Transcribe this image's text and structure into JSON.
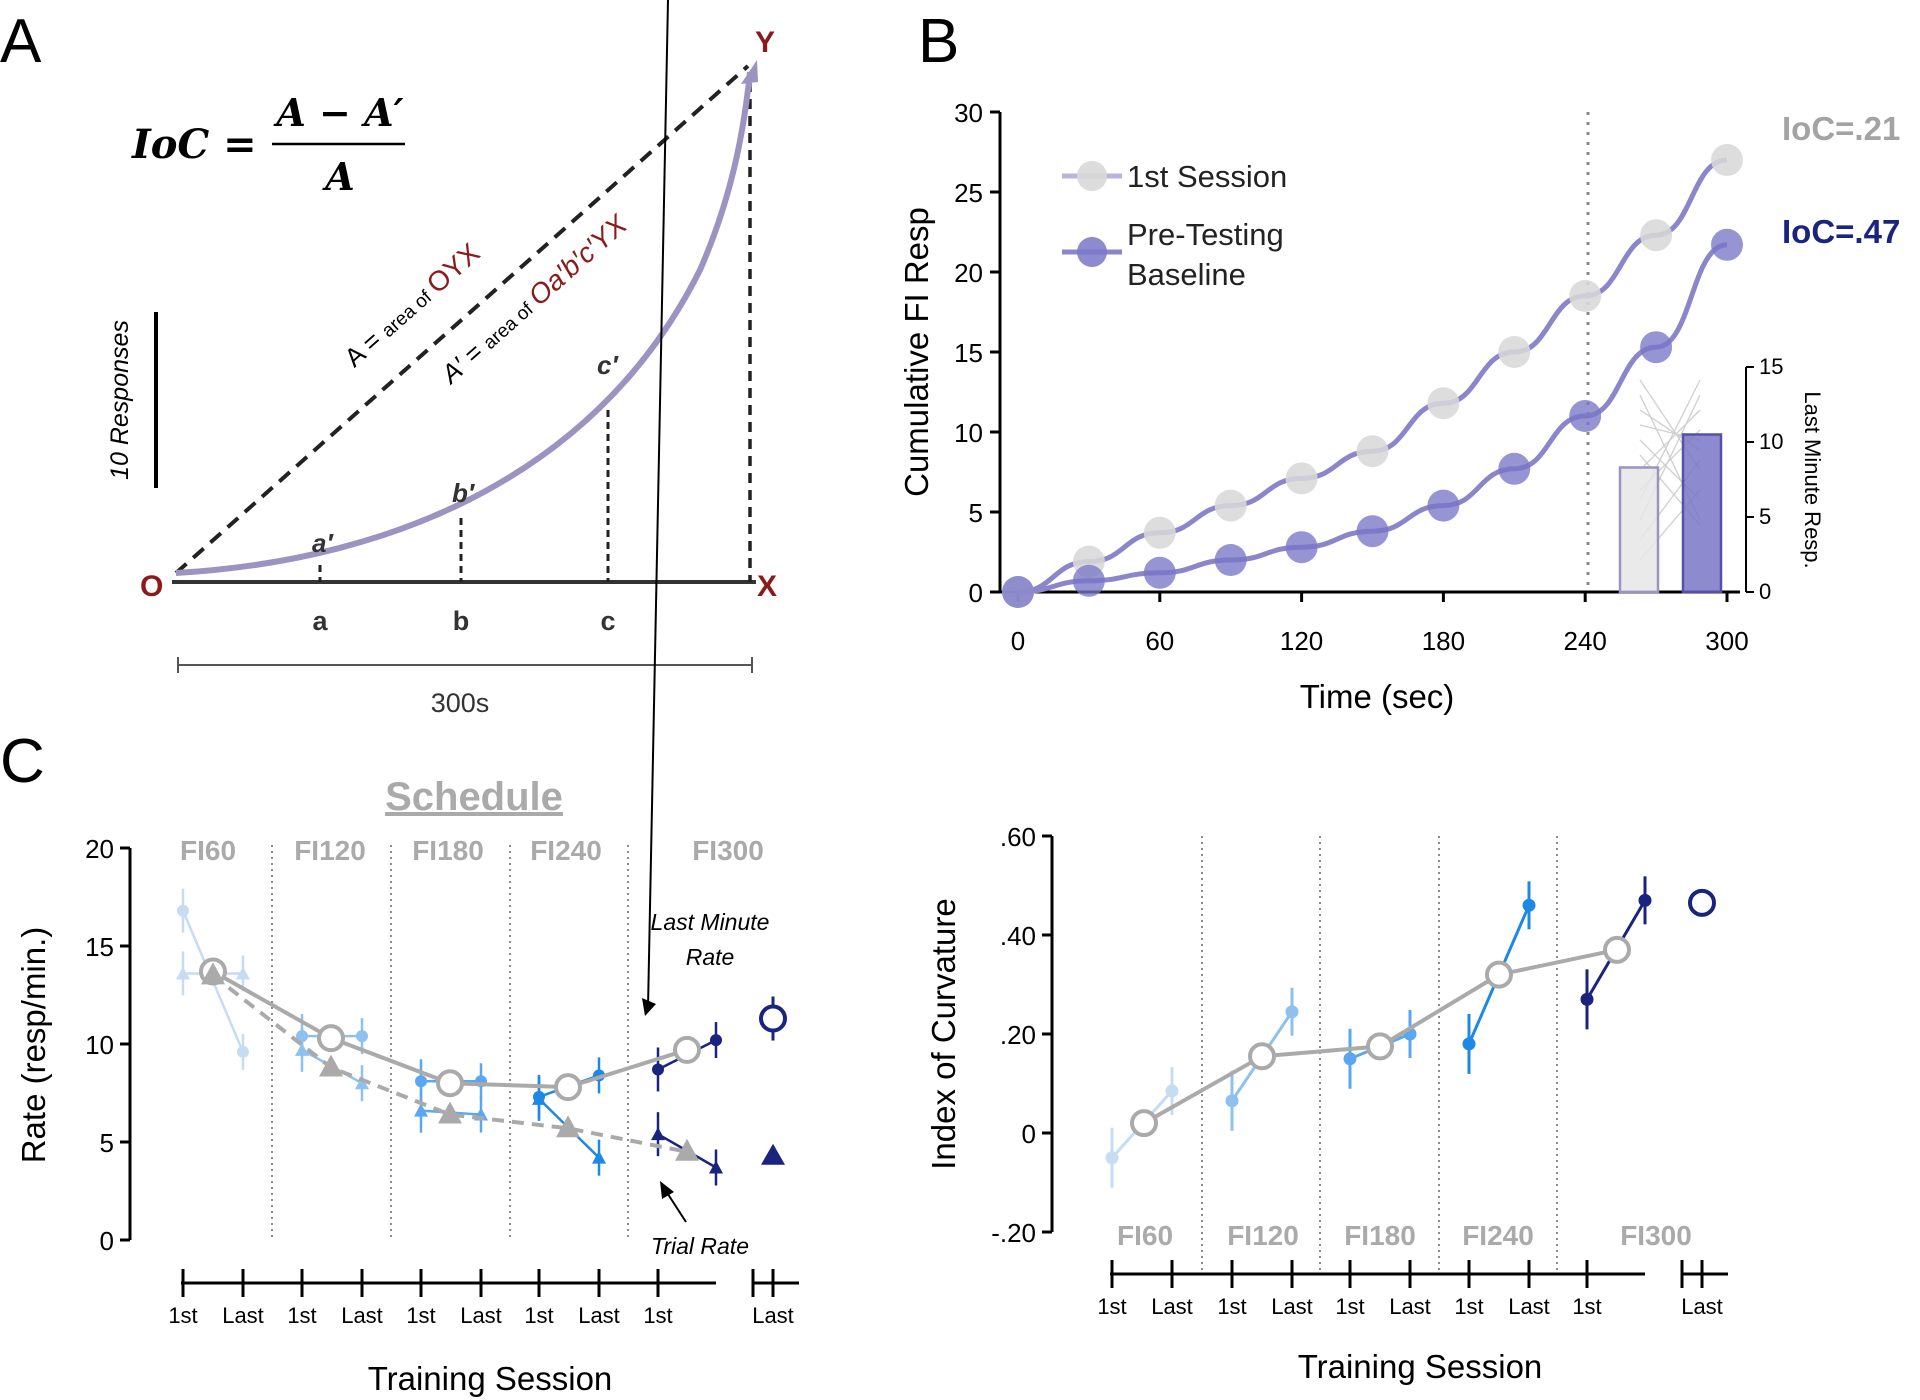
{
  "panels": {
    "a": "A",
    "b": "B",
    "c": "C"
  },
  "colors": {
    "curve": "#9d93c0",
    "fit_line": "#8b86c9",
    "first_session_marker": "#d8d8d8",
    "baseline_marker": "#7a76c8",
    "dark_red": "#8b1a1a",
    "ioc_grey": "#a3a3a3",
    "ioc_navy": "#1a237e",
    "fi60": "#c5dcf3",
    "fi120": "#8ec0f0",
    "fi180": "#5aa7f0",
    "fi240": "#1e88e5",
    "fi300": "#1a237e",
    "mean_grey": "#aaaaaa"
  },
  "panel_a": {
    "formula_lhs": "IoC =",
    "formula_num": "A − A′",
    "formula_den": "A",
    "def_a_prefix": "A = ",
    "def_a_area": "area of",
    "def_a_name": "OYX",
    "def_a2_prefix": "A′ = ",
    "def_a2_area": "area of",
    "def_a2_name": "Oa′b′c′YX",
    "scale_label": "10 Responses",
    "point_labels": {
      "o": "O",
      "x": "X",
      "y": "Y"
    },
    "curve_labels": [
      "a′",
      "b′",
      "c′"
    ],
    "axis_labels": [
      "a",
      "b",
      "c"
    ],
    "duration": "300s"
  },
  "chart_data": [
    {
      "id": "B",
      "type": "line",
      "title": "",
      "xlabel": "Time (sec)",
      "ylabel": "Cumulative FI Resp",
      "xlim": [
        0,
        300
      ],
      "ylim": [
        0,
        30
      ],
      "x_ticks": [
        "0",
        "60",
        "120",
        "180",
        "240",
        "300"
      ],
      "y_ticks": [
        "0",
        "5",
        "10",
        "15",
        "20",
        "25",
        "30"
      ],
      "x": [
        0,
        30,
        60,
        90,
        120,
        150,
        180,
        210,
        240,
        270,
        300
      ],
      "series": [
        {
          "name": "1st Session",
          "values": [
            0,
            1.9,
            3.7,
            5.4,
            7.1,
            8.8,
            11.8,
            15.0,
            18.5,
            22.3,
            27.0
          ]
        },
        {
          "name": "Pre-Testing Baseline",
          "values": [
            0,
            0.7,
            1.2,
            2.0,
            2.8,
            3.8,
            5.4,
            7.7,
            11.0,
            15.3,
            21.7
          ]
        }
      ],
      "legend": [
        "1st Session",
        "Pre-Testing",
        "Baseline"
      ],
      "ioc_labels": [
        "IoC=.21",
        "IoC=.47"
      ],
      "marker_line_x": 240,
      "inset": {
        "ylabel": "Last Minute Resp.",
        "ylim": [
          0,
          15
        ],
        "y_ticks": [
          "0",
          "5",
          "10",
          "15"
        ],
        "bars": [
          {
            "name": "1st Session",
            "value": 8.3
          },
          {
            "name": "Pre-Testing Baseline",
            "value": 10.5
          }
        ]
      }
    },
    {
      "id": "C-left",
      "type": "line",
      "title": "Schedule",
      "xlabel": "Training Session",
      "ylabel": "Rate (resp/min.)",
      "ylim": [
        0,
        20
      ],
      "y_ticks": [
        "0",
        "5",
        "10",
        "15",
        "20"
      ],
      "schedules": [
        "FI60",
        "FI120",
        "FI180",
        "FI240",
        "FI300"
      ],
      "session_labels": [
        "1st",
        "Last",
        "1st",
        "Last",
        "1st",
        "Last",
        "1st",
        "Last",
        "1st",
        "Last"
      ],
      "annotations": [
        "Last Minute",
        "Rate",
        "Trial Rate"
      ],
      "last_minute_rate": {
        "first": [
          16.8,
          10.4,
          8.1,
          7.3,
          8.7
        ],
        "last": [
          9.6,
          10.4,
          8.1,
          8.4,
          10.2
        ],
        "mean": [
          13.7,
          10.3,
          8.0,
          7.8,
          9.7
        ],
        "test": 11.3
      },
      "trial_rate": {
        "first": [
          13.6,
          9.7,
          6.6,
          7.2,
          5.4
        ],
        "last": [
          13.6,
          8.0,
          6.4,
          4.2,
          3.7
        ],
        "mean": [
          13.5,
          8.8,
          6.4,
          5.7,
          4.5
        ],
        "test": 4.3
      }
    },
    {
      "id": "C-right",
      "type": "line",
      "xlabel": "Training Session",
      "ylabel": "Index of Curvature",
      "ylim": [
        -0.2,
        0.6
      ],
      "y_ticks": [
        ".60",
        ".40",
        ".20",
        "0",
        "-.20"
      ],
      "schedules": [
        "FI60",
        "FI120",
        "FI180",
        "FI240",
        "FI300"
      ],
      "session_labels": [
        "1st",
        "Last",
        "1st",
        "Last",
        "1st",
        "Last",
        "1st",
        "Last",
        "1st",
        "Last"
      ],
      "first": [
        -0.05,
        0.065,
        0.15,
        0.18,
        0.27
      ],
      "last": [
        0.085,
        0.245,
        0.2,
        0.46,
        0.47
      ],
      "mean": [
        0.02,
        0.155,
        0.175,
        0.32,
        0.37
      ],
      "test": 0.465
    }
  ]
}
